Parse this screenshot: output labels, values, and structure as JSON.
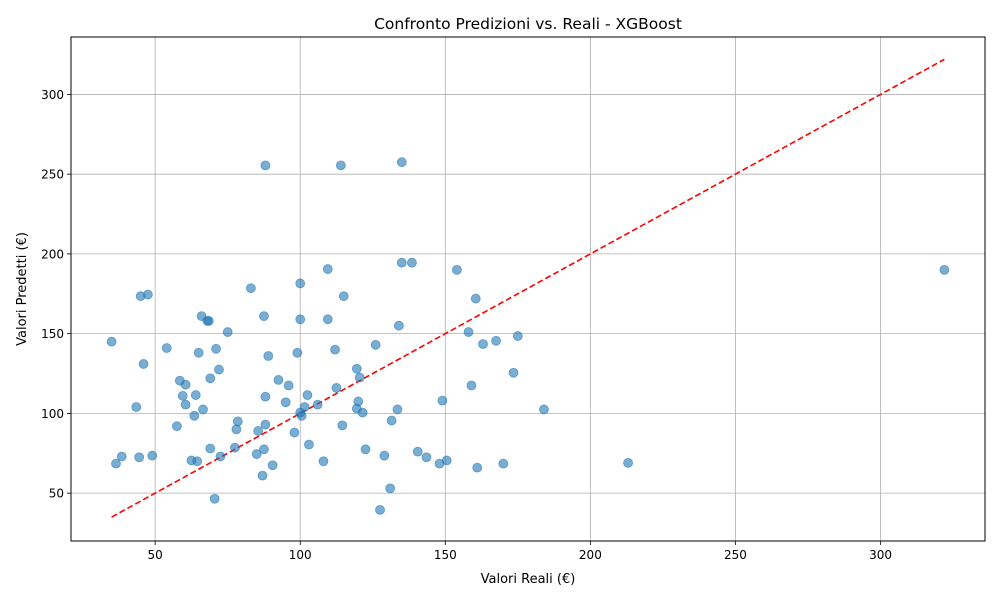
{
  "chart_data": {
    "type": "scatter",
    "title": "Confronto Predizioni vs. Reali - XGBoost",
    "xlabel": "Valori Reali (€)",
    "ylabel": "Valori Predetti (€)",
    "xlim": [
      21,
      336
    ],
    "ylim": [
      20,
      336
    ],
    "xticks": [
      50,
      100,
      150,
      200,
      250,
      300
    ],
    "yticks": [
      50,
      100,
      150,
      200,
      250,
      300
    ],
    "grid": true,
    "point_color": "#1f77b4",
    "line_color": "#ff0000",
    "reference_line": {
      "name": "y = x",
      "x": [
        35,
        322
      ],
      "y": [
        35,
        322
      ]
    },
    "points": [
      [
        35,
        145
      ],
      [
        36.5,
        68.5
      ],
      [
        38.5,
        73
      ],
      [
        43.5,
        104
      ],
      [
        44.5,
        72.5
      ],
      [
        45,
        173.5
      ],
      [
        46,
        131
      ],
      [
        47.5,
        174.5
      ],
      [
        49,
        73.5
      ],
      [
        54,
        141
      ],
      [
        57.5,
        92
      ],
      [
        58.5,
        120.5
      ],
      [
        59.5,
        111
      ],
      [
        60.5,
        105.5
      ],
      [
        60.5,
        118
      ],
      [
        62.5,
        70.5
      ],
      [
        63.5,
        98.5
      ],
      [
        64,
        111.5
      ],
      [
        64.5,
        70
      ],
      [
        65,
        138
      ],
      [
        66,
        161
      ],
      [
        66.5,
        102.5
      ],
      [
        68,
        158
      ],
      [
        68.5,
        158
      ],
      [
        69,
        78
      ],
      [
        69,
        122
      ],
      [
        70.5,
        46.5
      ],
      [
        71,
        140.5
      ],
      [
        72,
        127.5
      ],
      [
        72.5,
        73
      ],
      [
        75,
        151
      ],
      [
        77.5,
        78.5
      ],
      [
        78,
        90
      ],
      [
        78.5,
        95
      ],
      [
        83,
        178.5
      ],
      [
        85,
        74.5
      ],
      [
        85.5,
        89
      ],
      [
        87,
        61
      ],
      [
        87.5,
        161
      ],
      [
        87.5,
        77.5
      ],
      [
        88,
        93
      ],
      [
        88,
        110.5
      ],
      [
        88,
        255.5
      ],
      [
        89,
        136
      ],
      [
        90.5,
        67.5
      ],
      [
        92.5,
        121
      ],
      [
        95,
        107
      ],
      [
        96,
        117.5
      ],
      [
        98,
        88
      ],
      [
        99,
        138
      ],
      [
        100,
        181.5
      ],
      [
        100,
        159
      ],
      [
        100,
        100.5
      ],
      [
        100.5,
        98.5
      ],
      [
        101.5,
        104
      ],
      [
        102.5,
        111.5
      ],
      [
        103,
        80.5
      ],
      [
        106,
        105.5
      ],
      [
        108,
        70
      ],
      [
        109.5,
        190.5
      ],
      [
        109.5,
        159
      ],
      [
        112,
        140
      ],
      [
        112.5,
        116
      ],
      [
        114,
        255.5
      ],
      [
        114.5,
        92.5
      ],
      [
        115,
        173.5
      ],
      [
        119.5,
        128
      ],
      [
        119.5,
        103
      ],
      [
        120,
        107.5
      ],
      [
        120.5,
        122.5
      ],
      [
        121.5,
        100.5
      ],
      [
        122.5,
        77.5
      ],
      [
        126,
        143
      ],
      [
        127.5,
        39.5
      ],
      [
        129,
        73.5
      ],
      [
        131,
        53
      ],
      [
        131.5,
        95.5
      ],
      [
        133.5,
        102.5
      ],
      [
        134,
        155
      ],
      [
        135,
        257.5
      ],
      [
        135,
        194.5
      ],
      [
        138.5,
        194.5
      ],
      [
        140.5,
        76
      ],
      [
        143.5,
        72.5
      ],
      [
        148,
        68.5
      ],
      [
        149,
        108
      ],
      [
        150.5,
        70.5
      ],
      [
        154,
        190
      ],
      [
        158,
        151
      ],
      [
        159,
        117.5
      ],
      [
        160.5,
        172
      ],
      [
        161,
        66
      ],
      [
        163,
        143.5
      ],
      [
        167.5,
        145.5
      ],
      [
        170,
        68.5
      ],
      [
        173.5,
        125.5
      ],
      [
        175,
        148.5
      ],
      [
        184,
        102.5
      ],
      [
        213,
        69
      ],
      [
        322,
        190
      ]
    ]
  }
}
